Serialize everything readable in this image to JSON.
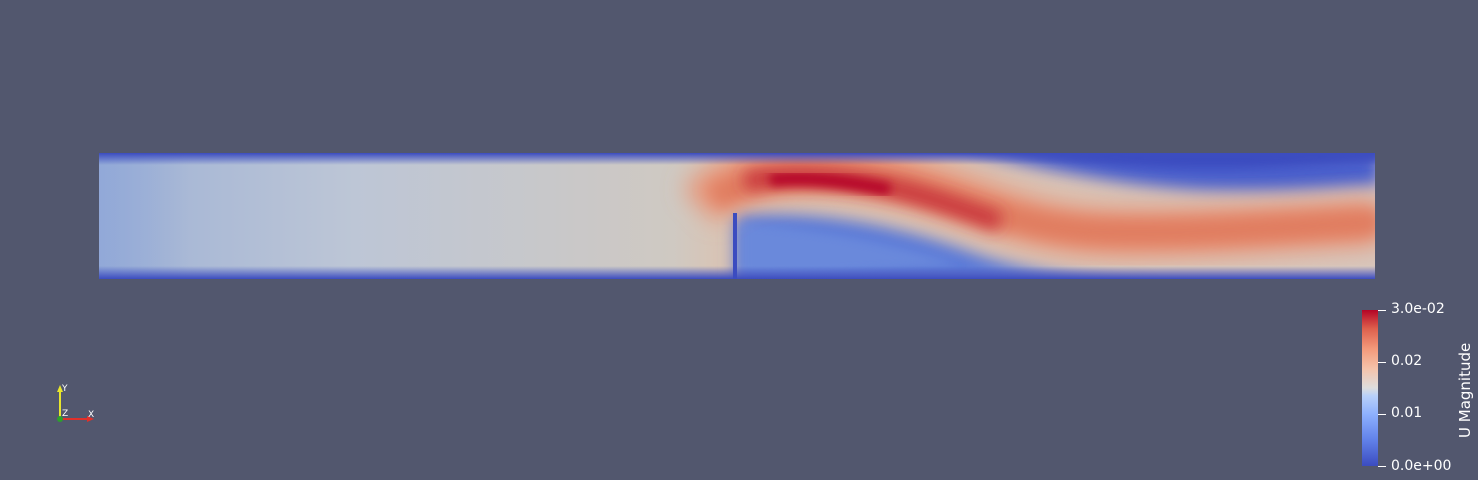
{
  "colorbar": {
    "title": "U Magnitude",
    "ticks": [
      "3.0e-02",
      "0.02",
      "0.01",
      "0.0e+00"
    ],
    "range": [
      0,
      0.03
    ],
    "colormap": [
      "#3b4cc0",
      "#dddddd",
      "#b40426"
    ]
  },
  "orientation_axes": {
    "x_label": "X",
    "y_label": "Y",
    "z_label": "Z",
    "x_color": "#e0302a",
    "y_color": "#e8e52c",
    "z_color": "#2ca02c"
  },
  "background_color": "#52576e"
}
